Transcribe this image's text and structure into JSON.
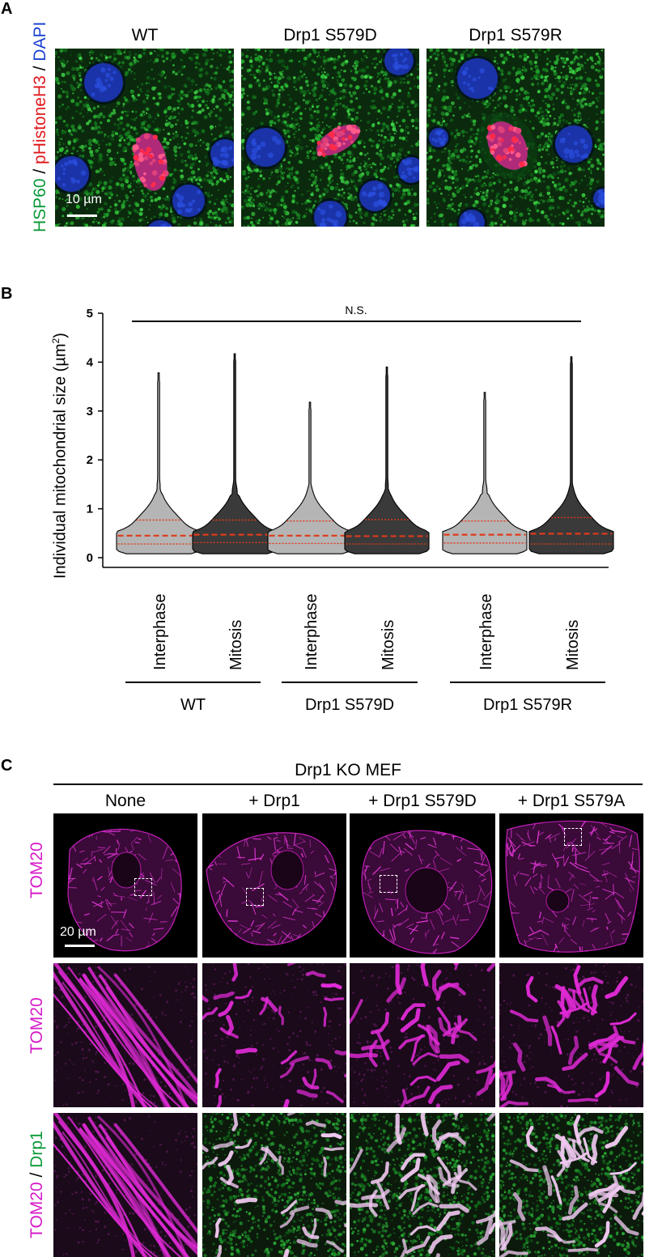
{
  "panel_a": {
    "label": "A",
    "ylabel_parts": [
      {
        "text": "HSP60",
        "color": "#0a9a3a"
      },
      {
        "text": " / ",
        "color": "#000000"
      },
      {
        "text": "pHistoneH3",
        "color": "#e0181c"
      },
      {
        "text": " / ",
        "color": "#000000"
      },
      {
        "text": "DAPI",
        "color": "#1a3fd0"
      }
    ],
    "columns": [
      "WT",
      "Drp1 S579D",
      "Drp1 S579R"
    ],
    "scale_bar": "10 µm"
  },
  "panel_b": {
    "label": "B",
    "chart_data": {
      "type": "violin",
      "ylabel": "Individual mitochondrial size (µm²)",
      "ylabel_parts": [
        "Individual mitochondrial size (µm",
        "2",
        ")"
      ],
      "ylim": [
        0,
        5
      ],
      "yticks": [
        "0",
        "1",
        "2",
        "3",
        "4",
        "5"
      ],
      "significance": "N.S.",
      "groups": [
        "WT",
        "Drp1 S579D",
        "Drp1 S579R"
      ],
      "categories": [
        "Interphase",
        "Mitosis",
        "Interphase",
        "Mitosis",
        "Interphase",
        "Mitosis"
      ],
      "series": [
        {
          "group": "WT",
          "phase": "Interphase",
          "color": "#b5b5b5",
          "q1": 0.28,
          "median": 0.45,
          "q3": 0.77,
          "max": 3.78
        },
        {
          "group": "WT",
          "phase": "Mitosis",
          "color": "#3a3a3a",
          "q1": 0.31,
          "median": 0.47,
          "q3": 0.77,
          "max": 4.17
        },
        {
          "group": "Drp1 S579D",
          "phase": "Interphase",
          "color": "#b5b5b5",
          "q1": 0.29,
          "median": 0.45,
          "q3": 0.75,
          "max": 3.18
        },
        {
          "group": "Drp1 S579D",
          "phase": "Mitosis",
          "color": "#3a3a3a",
          "q1": 0.28,
          "median": 0.44,
          "q3": 0.78,
          "max": 3.9
        },
        {
          "group": "Drp1 S579R",
          "phase": "Interphase",
          "color": "#b5b5b5",
          "q1": 0.3,
          "median": 0.47,
          "q3": 0.75,
          "max": 3.38
        },
        {
          "group": "Drp1 S579R",
          "phase": "Mitosis",
          "color": "#3a3a3a",
          "q1": 0.28,
          "median": 0.49,
          "q3": 0.82,
          "max": 4.11
        }
      ],
      "quartile_color": "#e03a1a"
    }
  },
  "panel_c": {
    "label": "C",
    "header": "Drp1 KO MEF",
    "columns": [
      "None",
      "+ Drp1",
      "+ Drp1 S579D",
      "+ Drp1 S579A"
    ],
    "rows": [
      {
        "parts": [
          {
            "text": "TOM20",
            "color": "#d61ac8"
          }
        ]
      },
      {
        "parts": [
          {
            "text": "TOM20",
            "color": "#d61ac8"
          }
        ]
      },
      {
        "parts": [
          {
            "text": "TOM20",
            "color": "#d61ac8"
          },
          {
            "text": " / ",
            "color": "#000000"
          },
          {
            "text": "Drp1",
            "color": "#0a9a3a"
          }
        ]
      }
    ],
    "scale_bar": "20 µm"
  }
}
